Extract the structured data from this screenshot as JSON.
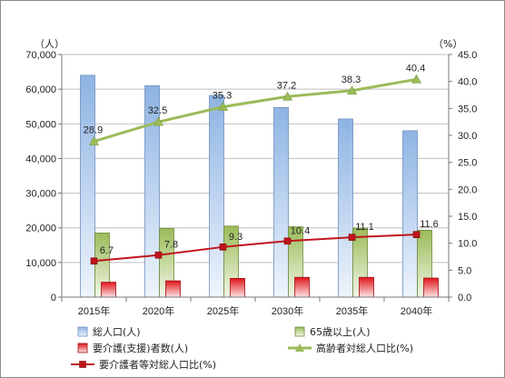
{
  "chart_data": {
    "type": "bar",
    "categories": [
      "2015年",
      "2020年",
      "2025年",
      "2030年",
      "2035年",
      "2040年"
    ],
    "left_unit": "（人）",
    "right_unit": "（%）",
    "ylim_left": [
      0,
      70000
    ],
    "ylim_right": [
      0,
      45
    ],
    "left_ticks": [
      "0",
      "10,000",
      "20,000",
      "30,000",
      "40,000",
      "50,000",
      "60,000",
      "70,000"
    ],
    "right_ticks": [
      "0.0",
      "5.0",
      "10.0",
      "15.0",
      "20.0",
      "25.0",
      "30.0",
      "35.0",
      "40.0",
      "45.0"
    ],
    "grid": "horizontal",
    "legend_position": "bottom",
    "series": [
      {
        "name": "総人口(人)",
        "kind": "bar",
        "axis": "left",
        "color": "#8eb4e3",
        "values": [
          64000,
          61000,
          58200,
          54700,
          51400,
          48000
        ]
      },
      {
        "name": "65歳以上(人)",
        "kind": "bar",
        "axis": "left",
        "color": "#9bbb59",
        "values": [
          18500,
          19800,
          20500,
          20300,
          19900,
          19300
        ]
      },
      {
        "name": "要介護(支援)者数(人)",
        "kind": "bar",
        "axis": "left",
        "color": "#e0151b",
        "values": [
          4300,
          4700,
          5400,
          5700,
          5700,
          5500
        ]
      },
      {
        "name": "高齢者対総人口比(%)",
        "kind": "line",
        "axis": "right",
        "color": "#9bbb59",
        "values": [
          28.9,
          32.5,
          35.3,
          37.2,
          38.3,
          40.4
        ],
        "labels": [
          "28.9",
          "32.5",
          "35.3",
          "37.2",
          "38.3",
          "40.4"
        ]
      },
      {
        "name": "要介護者等対総人口比(%)",
        "kind": "line",
        "axis": "right",
        "color": "#c0141b",
        "values": [
          6.7,
          7.8,
          9.3,
          10.4,
          11.1,
          11.6
        ],
        "labels": [
          "6.7",
          "7.8",
          "9.3",
          "10.4",
          "11.1",
          "11.6"
        ]
      }
    ]
  }
}
